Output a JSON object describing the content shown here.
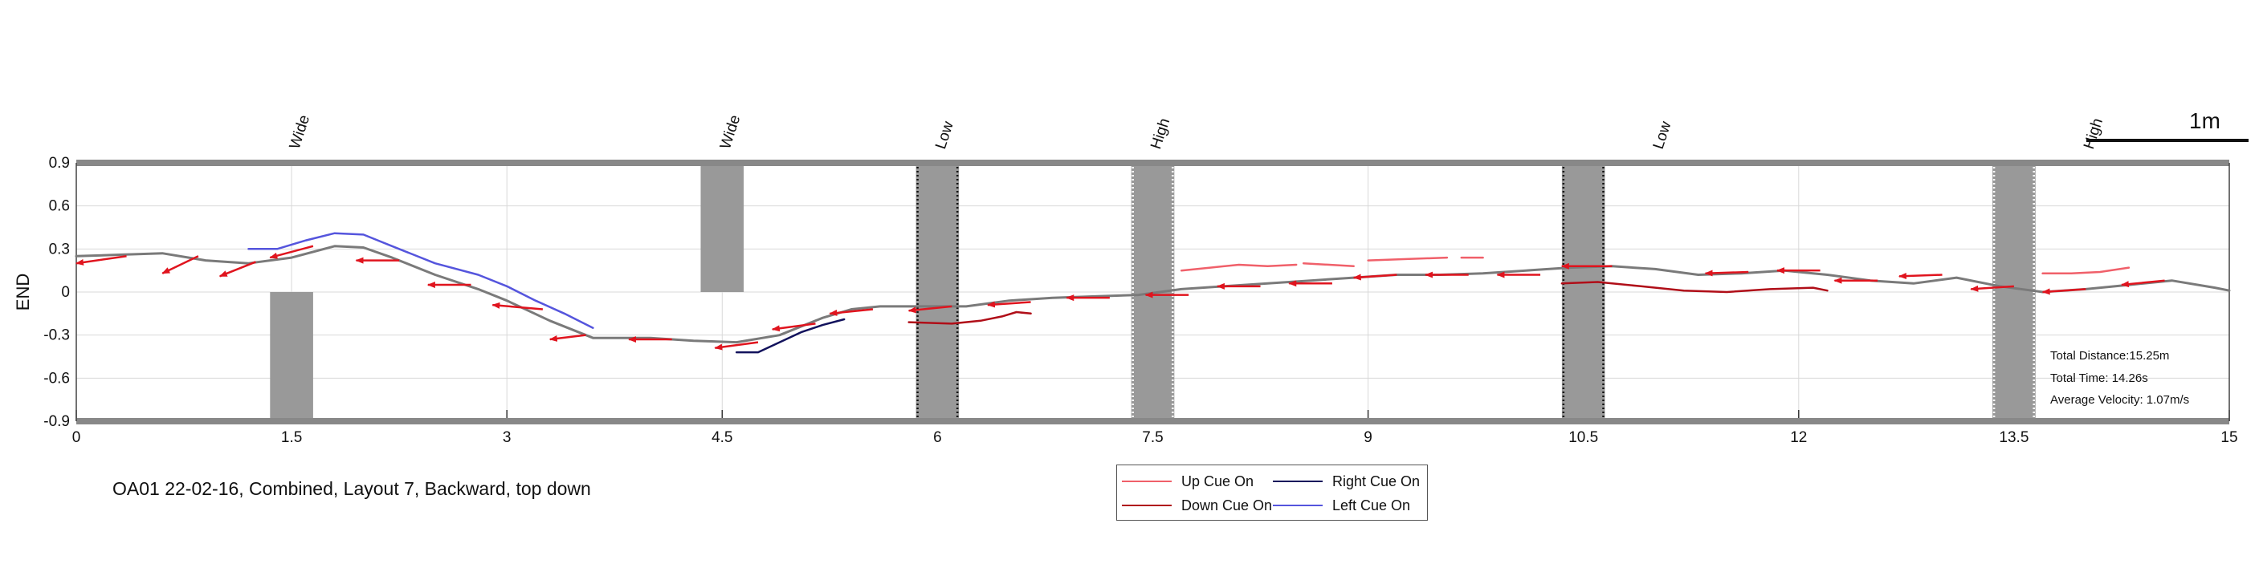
{
  "chart_data": {
    "type": "line",
    "ylabel": "END",
    "xlim": [
      0,
      15
    ],
    "ylim": [
      -0.9,
      0.9
    ],
    "xticks": [
      "0",
      "1.5",
      "3",
      "4.5",
      "6",
      "7.5",
      "9",
      "10.5",
      "12",
      "13.5",
      "15"
    ],
    "yticks": [
      "0.9",
      "0.6",
      "0.3",
      "0",
      "-0.3",
      "-0.6",
      "-0.9"
    ],
    "grid": true,
    "scale_bar_label": "1m",
    "caption": "OA01 22-02-16, Combined, Layout 7, Backward, top down",
    "info": {
      "distance": "Total Distance:15.25m",
      "time": "Total Time: 14.26s",
      "velocity": "Average Velocity: 1.07m/s"
    },
    "legend_position": "bottom-center",
    "legend": [
      {
        "key": "up",
        "label": "Up Cue On",
        "color": "#f0606a"
      },
      {
        "key": "right",
        "label": "Right Cue On",
        "color": "#12125c"
      },
      {
        "key": "down",
        "label": "Down Cue On",
        "color": "#b00e18"
      },
      {
        "key": "left",
        "label": "Left Cue On",
        "color": "#5555dd"
      }
    ],
    "obstacles": [
      {
        "label": "Wide",
        "label_x": 1.55,
        "x0": 1.35,
        "x1": 1.65,
        "y0": -0.9,
        "y1": 0.0,
        "style": "solid"
      },
      {
        "label": "Wide",
        "label_x": 4.55,
        "x0": 4.35,
        "x1": 4.65,
        "y0": 0.0,
        "y1": 0.9,
        "style": "solid"
      },
      {
        "label": "Low",
        "label_x": 6.05,
        "x0": 5.85,
        "x1": 6.15,
        "y0": -0.9,
        "y1": 0.9,
        "style": "black-dotted"
      },
      {
        "label": "High",
        "label_x": 7.55,
        "x0": 7.35,
        "x1": 7.65,
        "y0": -0.9,
        "y1": 0.9,
        "style": "white-dotted"
      },
      {
        "label": "Low",
        "label_x": 11.05,
        "x0": 10.35,
        "x1": 10.65,
        "y0": -0.9,
        "y1": 0.9,
        "style": "black-dotted"
      },
      {
        "label": "High",
        "label_x": 14.05,
        "x0": 13.35,
        "x1": 13.65,
        "y0": -0.9,
        "y1": 0.9,
        "style": "white-dotted"
      }
    ],
    "series": [
      {
        "key": "path",
        "color": "#7a7a7a",
        "x": [
          0,
          0.3,
          0.6,
          0.9,
          1.2,
          1.5,
          1.8,
          2.0,
          2.2,
          2.5,
          2.8,
          3.0,
          3.3,
          3.6,
          4.0,
          4.3,
          4.6,
          4.9,
          5.2,
          5.4,
          5.6,
          5.9,
          6.2,
          6.5,
          6.8,
          7.1,
          7.4,
          7.7,
          8.0,
          8.3,
          8.6,
          8.9,
          9.2,
          9.5,
          9.8,
          10.1,
          10.4,
          10.7,
          11.0,
          11.3,
          11.6,
          11.9,
          12.2,
          12.5,
          12.8,
          13.1,
          13.4,
          13.7,
          14.0,
          14.3,
          14.6,
          14.9,
          15.0
        ],
        "y": [
          0.25,
          0.26,
          0.27,
          0.22,
          0.2,
          0.24,
          0.32,
          0.31,
          0.24,
          0.12,
          0.02,
          -0.06,
          -0.2,
          -0.32,
          -0.32,
          -0.34,
          -0.35,
          -0.3,
          -0.18,
          -0.12,
          -0.1,
          -0.1,
          -0.1,
          -0.06,
          -0.04,
          -0.03,
          -0.02,
          0.02,
          0.04,
          0.06,
          0.08,
          0.1,
          0.12,
          0.12,
          0.13,
          0.15,
          0.17,
          0.18,
          0.16,
          0.12,
          0.13,
          0.15,
          0.12,
          0.08,
          0.06,
          0.1,
          0.04,
          0.0,
          0.02,
          0.05,
          0.08,
          0.03,
          0.01
        ]
      },
      {
        "key": "left",
        "color": "#5555dd",
        "x": [
          1.2,
          1.4,
          1.6,
          1.8,
          2.0,
          2.2,
          2.5,
          2.8,
          3.0,
          3.2,
          3.4,
          3.6
        ],
        "y": [
          0.3,
          0.3,
          0.36,
          0.41,
          0.4,
          0.32,
          0.2,
          0.12,
          0.04,
          -0.06,
          -0.15,
          -0.25
        ]
      },
      {
        "key": "right",
        "color": "#12125c",
        "x": [
          4.6,
          4.75,
          4.9,
          5.05,
          5.2,
          5.35
        ],
        "y": [
          -0.42,
          -0.42,
          -0.35,
          -0.28,
          -0.23,
          -0.19
        ]
      },
      {
        "key": "down",
        "color": "#b00e18",
        "x": [
          5.8,
          6.1,
          6.3,
          6.45,
          6.55,
          6.65
        ],
        "y": [
          -0.21,
          -0.22,
          -0.2,
          -0.17,
          -0.14,
          -0.15
        ]
      },
      {
        "key": "down",
        "color": "#b00e18",
        "x": [
          10.35,
          10.6,
          10.9,
          11.2,
          11.5,
          11.8,
          12.1,
          12.2
        ],
        "y": [
          0.06,
          0.07,
          0.04,
          0.01,
          0.0,
          0.02,
          0.03,
          0.01
        ]
      },
      {
        "key": "up",
        "color": "#f0606a",
        "x": [
          7.7,
          7.9,
          8.1,
          8.3,
          8.5
        ],
        "y": [
          0.15,
          0.17,
          0.19,
          0.18,
          0.19
        ]
      },
      {
        "key": "up",
        "color": "#f0606a",
        "x": [
          8.55,
          8.9
        ],
        "y": [
          0.2,
          0.18
        ]
      },
      {
        "key": "up",
        "color": "#f0606a",
        "x": [
          9.0,
          9.55
        ],
        "y": [
          0.22,
          0.24
        ]
      },
      {
        "key": "up",
        "color": "#f0606a",
        "x": [
          9.65,
          9.8
        ],
        "y": [
          0.24,
          0.24
        ]
      },
      {
        "key": "up",
        "color": "#f0606a",
        "x": [
          13.7,
          13.9,
          14.1,
          14.3
        ],
        "y": [
          0.13,
          0.13,
          0.14,
          0.17
        ]
      }
    ],
    "arrows": [
      {
        "x": 0.35,
        "y": 0.25,
        "dx": -0.35,
        "dy": -0.05
      },
      {
        "x": 0.85,
        "y": 0.25,
        "dx": -0.25,
        "dy": -0.12
      },
      {
        "x": 1.25,
        "y": 0.21,
        "dx": -0.25,
        "dy": -0.1
      },
      {
        "x": 1.65,
        "y": 0.32,
        "dx": -0.3,
        "dy": -0.08
      },
      {
        "x": 2.25,
        "y": 0.22,
        "dx": -0.3,
        "dy": 0.0
      },
      {
        "x": 2.75,
        "y": 0.05,
        "dx": -0.3,
        "dy": 0.0
      },
      {
        "x": 3.25,
        "y": -0.12,
        "dx": -0.35,
        "dy": 0.03
      },
      {
        "x": 3.55,
        "y": -0.3,
        "dx": -0.25,
        "dy": -0.03
      },
      {
        "x": 4.15,
        "y": -0.33,
        "dx": -0.3,
        "dy": 0.0
      },
      {
        "x": 4.75,
        "y": -0.35,
        "dx": -0.3,
        "dy": -0.04
      },
      {
        "x": 5.15,
        "y": -0.22,
        "dx": -0.3,
        "dy": -0.04
      },
      {
        "x": 5.55,
        "y": -0.12,
        "dx": -0.3,
        "dy": -0.03
      },
      {
        "x": 6.1,
        "y": -0.1,
        "dx": -0.3,
        "dy": -0.03
      },
      {
        "x": 6.65,
        "y": -0.07,
        "dx": -0.3,
        "dy": -0.02
      },
      {
        "x": 7.2,
        "y": -0.04,
        "dx": -0.3,
        "dy": 0.0
      },
      {
        "x": 7.75,
        "y": -0.02,
        "dx": -0.3,
        "dy": 0.0
      },
      {
        "x": 8.25,
        "y": 0.04,
        "dx": -0.3,
        "dy": 0.0
      },
      {
        "x": 8.75,
        "y": 0.06,
        "dx": -0.3,
        "dy": 0.0
      },
      {
        "x": 9.2,
        "y": 0.12,
        "dx": -0.3,
        "dy": -0.02
      },
      {
        "x": 9.7,
        "y": 0.12,
        "dx": -0.3,
        "dy": 0.0
      },
      {
        "x": 10.2,
        "y": 0.12,
        "dx": -0.3,
        "dy": 0.0
      },
      {
        "x": 10.7,
        "y": 0.18,
        "dx": -0.35,
        "dy": 0.0
      },
      {
        "x": 11.65,
        "y": 0.14,
        "dx": -0.3,
        "dy": -0.01
      },
      {
        "x": 12.15,
        "y": 0.15,
        "dx": -0.3,
        "dy": 0.0
      },
      {
        "x": 12.55,
        "y": 0.08,
        "dx": -0.3,
        "dy": 0.0
      },
      {
        "x": 13.0,
        "y": 0.12,
        "dx": -0.3,
        "dy": -0.01
      },
      {
        "x": 13.5,
        "y": 0.04,
        "dx": -0.3,
        "dy": -0.02
      },
      {
        "x": 14.0,
        "y": 0.02,
        "dx": -0.3,
        "dy": -0.02
      },
      {
        "x": 14.55,
        "y": 0.08,
        "dx": -0.3,
        "dy": -0.03
      }
    ]
  }
}
